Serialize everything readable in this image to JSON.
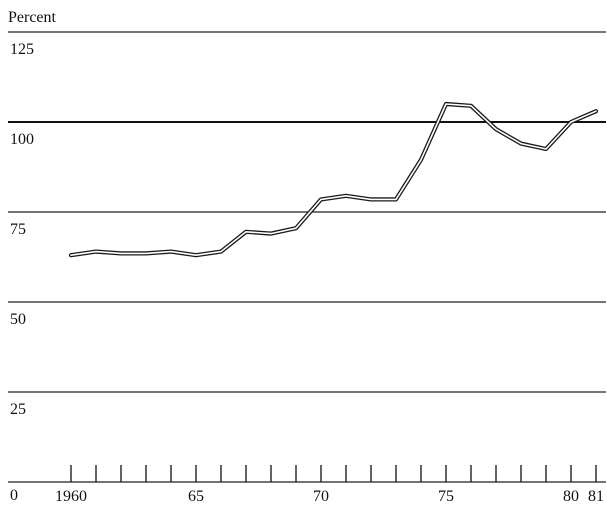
{
  "chart_data": {
    "type": "line",
    "title": "",
    "xlabel": "",
    "ylabel": "Percent",
    "ylim": [
      0,
      125
    ],
    "xlim": [
      1960,
      1981
    ],
    "grid": true,
    "y_ticks": [
      {
        "value": 125,
        "label": "125"
      },
      {
        "value": 100,
        "label": "100"
      },
      {
        "value": 75,
        "label": "75"
      },
      {
        "value": 50,
        "label": "50"
      },
      {
        "value": 25,
        "label": "25"
      },
      {
        "value": 0,
        "label": "0"
      }
    ],
    "x_ticks": [
      {
        "value": 1960,
        "label": "1960"
      },
      {
        "value": 1965,
        "label": "65"
      },
      {
        "value": 1970,
        "label": "70"
      },
      {
        "value": 1975,
        "label": "75"
      },
      {
        "value": 1980,
        "label": "80"
      },
      {
        "value": 1981,
        "label": "81"
      }
    ],
    "x_minor_ticks": [
      1960,
      1961,
      1962,
      1963,
      1964,
      1965,
      1966,
      1967,
      1968,
      1969,
      1970,
      1971,
      1972,
      1973,
      1974,
      1975,
      1976,
      1977,
      1978,
      1979,
      1980,
      1981
    ],
    "series": [
      {
        "x": [
          1960,
          1961,
          1962,
          1963,
          1964,
          1965,
          1966,
          1967,
          1968,
          1969,
          1970,
          1971,
          1972,
          1973,
          1974,
          1975,
          1976,
          1977,
          1978,
          1979,
          1980,
          1981
        ],
        "values": [
          63,
          64,
          63.5,
          63.5,
          64,
          63,
          64,
          69.5,
          69,
          70.5,
          78.5,
          79.5,
          78.5,
          78.5,
          89.5,
          105,
          104.5,
          98,
          94,
          92.5,
          100,
          103
        ]
      }
    ]
  }
}
